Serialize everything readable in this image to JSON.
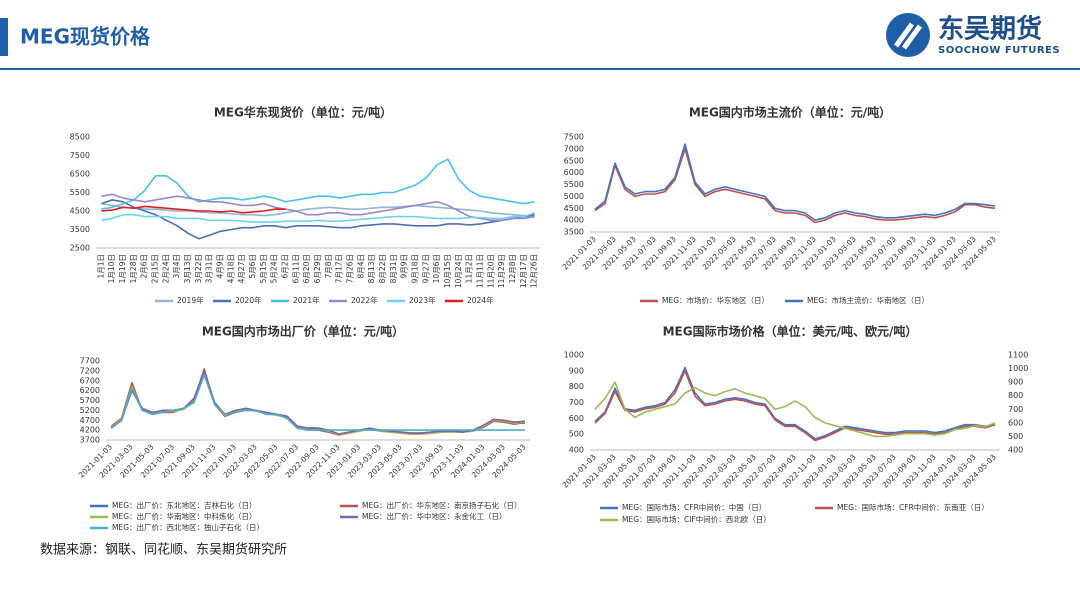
{
  "header": {
    "title": "MEG现货价格",
    "logo_cn": "东吴期货",
    "logo_en": "SOOCHOW FUTURES"
  },
  "source": "数据来源：钢联、同花顺、东吴期货研究所",
  "chart_data": [
    {
      "type": "line",
      "title": "MEG华东现货价（单位：元/吨）",
      "categories": [
        "1月1日",
        "1月10日",
        "1月19日",
        "1月28日",
        "2月6日",
        "2月15日",
        "2月24日",
        "3月4日",
        "3月13日",
        "3月22日",
        "3月31日",
        "4月9日",
        "4月18日",
        "4月27日",
        "5月6日",
        "5月15日",
        "5月24日",
        "6月2日",
        "6月11日",
        "6月20日",
        "6月29日",
        "7月8日",
        "7月17日",
        "7月26日",
        "8月4日",
        "8月13日",
        "8月22日",
        "8月31日",
        "9月9日",
        "9月18日",
        "9月27日",
        "10月6日",
        "10月15日",
        "10月24日",
        "11月2日",
        "11月11日",
        "11月20日",
        "11月29日",
        "12月8日",
        "12月17日",
        "12月26日"
      ],
      "ylim": [
        2500,
        8500
      ],
      "yticks": [
        2500,
        3500,
        4500,
        5500,
        6500,
        7500,
        8500
      ],
      "grid": false,
      "series": [
        {
          "name": "2019年",
          "color": "#93b3d6",
          "values": [
            4900,
            4800,
            4700,
            4650,
            4600,
            4600,
            4550,
            4500,
            4500,
            4450,
            4400,
            4400,
            4350,
            4300,
            4300,
            4250,
            4300,
            4400,
            4500,
            4600,
            4650,
            4700,
            4650,
            4600,
            4600,
            4650,
            4700,
            4700,
            4750,
            4800,
            4750,
            4700,
            4650,
            4600,
            4550,
            4500,
            4400,
            4350,
            4300,
            4250,
            4200
          ]
        },
        {
          "name": "2020年",
          "color": "#4e6fb0",
          "values": [
            4900,
            5100,
            5000,
            4700,
            4500,
            4300,
            4000,
            3700,
            3300,
            3000,
            3200,
            3400,
            3500,
            3600,
            3600,
            3700,
            3700,
            3600,
            3700,
            3700,
            3700,
            3650,
            3600,
            3600,
            3700,
            3750,
            3800,
            3800,
            3750,
            3700,
            3700,
            3700,
            3800,
            3800,
            3750,
            3800,
            3900,
            4000,
            4100,
            4200,
            4300
          ]
        },
        {
          "name": "2021年",
          "color": "#45c3e8",
          "values": [
            4600,
            4700,
            4900,
            5100,
            5600,
            6400,
            6400,
            6000,
            5300,
            5000,
            5100,
            5200,
            5200,
            5100,
            5200,
            5300,
            5200,
            5000,
            5100,
            5200,
            5300,
            5300,
            5200,
            5300,
            5400,
            5400,
            5500,
            5500,
            5700,
            5900,
            6300,
            7000,
            7300,
            6200,
            5600,
            5300,
            5200,
            5100,
            5000,
            4900,
            5000
          ]
        },
        {
          "name": "2022年",
          "color": "#9b86c9",
          "values": [
            5300,
            5400,
            5200,
            5100,
            5000,
            5100,
            5200,
            5300,
            5200,
            5100,
            5000,
            5000,
            4900,
            4800,
            4800,
            4900,
            4700,
            4600,
            4500,
            4300,
            4300,
            4400,
            4400,
            4300,
            4300,
            4400,
            4500,
            4600,
            4700,
            4800,
            4900,
            5000,
            4800,
            4500,
            4200,
            4100,
            4000,
            4000,
            4100,
            4100,
            4200
          ]
        },
        {
          "name": "2023年",
          "color": "#6cd2ee",
          "values": [
            4000,
            4100,
            4300,
            4300,
            4200,
            4200,
            4200,
            4100,
            4100,
            4100,
            4000,
            4000,
            4000,
            3950,
            3900,
            3900,
            3900,
            3950,
            3950,
            3950,
            4000,
            3950,
            3950,
            4000,
            4050,
            4100,
            4150,
            4200,
            4200,
            4200,
            4150,
            4100,
            4100,
            4100,
            4150,
            4150,
            4100,
            4100,
            4200,
            4200,
            4400
          ]
        },
        {
          "name": "2024年",
          "color": "#e02020",
          "values": [
            4500,
            4550,
            4700,
            4650,
            4750,
            4700,
            4650,
            4600,
            4550,
            4500,
            4500,
            4450,
            4500,
            4400,
            4450,
            4500,
            4600,
            4600,
            null,
            null,
            null,
            null,
            null,
            null,
            null,
            null,
            null,
            null,
            null,
            null,
            null,
            null,
            null,
            null,
            null,
            null,
            null,
            null,
            null,
            null,
            null
          ]
        }
      ]
    },
    {
      "type": "line",
      "title": "MEG国内市场主流价（单位：元/吨）",
      "categories": [
        "2021-01-03",
        null,
        "2021-03-03",
        null,
        "2021-05-03",
        null,
        "2021-07-03",
        null,
        "2021-09-03",
        null,
        "2021-11-03",
        null,
        "2022-01-03",
        null,
        "2022-03-03",
        null,
        "2022-05-03",
        null,
        "2022-07-03",
        null,
        "2022-09-03",
        null,
        "2022-11-03",
        null,
        "2023-01-03",
        null,
        "2023-03-03",
        null,
        "2023-05-03",
        null,
        "2023-07-03",
        null,
        "2023-09-03",
        null,
        "2023-11-03",
        null,
        "2024-01-03",
        null,
        "2024-03-03",
        null,
        "2024-05-03"
      ],
      "ylim": [
        3500,
        7500
      ],
      "yticks": [
        3500,
        4000,
        4500,
        5000,
        5500,
        6000,
        6500,
        7000,
        7500
      ],
      "grid": false,
      "series": [
        {
          "name": "MEG：市场价：华东地区（日）",
          "color": "#c0504d",
          "values": [
            4400,
            4700,
            6300,
            5300,
            5000,
            5100,
            5100,
            5200,
            5700,
            7000,
            5500,
            5000,
            5200,
            5300,
            5200,
            5100,
            5000,
            4900,
            4400,
            4300,
            4300,
            4200,
            3900,
            4000,
            4200,
            4300,
            4200,
            4150,
            4050,
            4000,
            4000,
            4050,
            4100,
            4150,
            4100,
            4200,
            4350,
            4650,
            4650,
            4550,
            4500
          ]
        },
        {
          "name": "MEG：市场主流价：华南地区（日）",
          "color": "#4472c4",
          "values": [
            4450,
            4800,
            6400,
            5400,
            5100,
            5200,
            5200,
            5300,
            5800,
            7200,
            5600,
            5100,
            5300,
            5400,
            5300,
            5200,
            5100,
            5000,
            4500,
            4400,
            4400,
            4300,
            4000,
            4100,
            4300,
            4400,
            4300,
            4250,
            4150,
            4100,
            4100,
            4150,
            4200,
            4250,
            4200,
            4300,
            4450,
            4700,
            4700,
            4650,
            4600
          ]
        }
      ]
    },
    {
      "type": "line",
      "title": "MEG国内市场出厂价（单位：元/吨）",
      "categories": [
        "2021-01-03",
        null,
        "2021-03-03",
        null,
        "2021-05-03",
        null,
        "2021-07-03",
        null,
        "2021-09-03",
        null,
        "2021-11-03",
        null,
        "2022-01-03",
        null,
        "2022-03-03",
        null,
        "2022-05-03",
        null,
        "2022-07-03",
        null,
        "2022-09-03",
        null,
        "2022-11-03",
        null,
        "2023-01-03",
        null,
        "2023-03-03",
        null,
        "2023-05-03",
        null,
        "2023-07-03",
        null,
        "2023-09-03",
        null,
        "2023-11-03",
        null,
        "2024-01-03",
        null,
        "2024-03-03",
        null,
        "2024-05-03"
      ],
      "ylim": [
        3700,
        7700
      ],
      "yticks": [
        3700,
        4200,
        4700,
        5200,
        5700,
        6200,
        6700,
        7200,
        7700
      ],
      "grid": false,
      "series": [
        {
          "name": "MEG：出厂价：东北地区：吉林石化（日）",
          "color": "#4472c4",
          "values": [
            4300,
            4700,
            6200,
            5300,
            5000,
            5200,
            5200,
            5300,
            5600,
            7000,
            5600,
            5000,
            5100,
            5300,
            5200,
            5100,
            5000,
            4900,
            4400,
            4300,
            4300,
            4200,
            4000,
            4100,
            4200,
            4300,
            4200,
            4100,
            4100,
            4050,
            4050,
            4100,
            4150,
            4150,
            4100,
            4200,
            4400,
            4700,
            4650,
            4550,
            4550
          ]
        },
        {
          "name": "MEG：出厂价：华东地区：南京扬子石化（日）",
          "color": "#c0504d",
          "values": [
            4400,
            4800,
            6600,
            5200,
            5000,
            5100,
            5100,
            5300,
            5700,
            7300,
            5500,
            4900,
            5100,
            5200,
            5200,
            5000,
            5000,
            4800,
            4300,
            4200,
            4200,
            4100,
            3950,
            4050,
            4150,
            4250,
            4150,
            4100,
            4050,
            4000,
            4000,
            4050,
            4100,
            4150,
            4100,
            4150,
            4350,
            4650,
            4600,
            4500,
            4600
          ]
        },
        {
          "name": "MEG：出厂价：华南地区：中科炼化（日）",
          "color": "#9bbb59",
          "values": [
            4350,
            4750,
            6400,
            5250,
            5050,
            5150,
            5150,
            5250,
            5650,
            7100,
            5550,
            4950,
            5150,
            5250,
            5150,
            5050,
            4950,
            4850,
            4350,
            4250,
            4250,
            4150,
            3950,
            4050,
            4150,
            4250,
            4150,
            4100,
            4050,
            4000,
            4000,
            4050,
            4100,
            4100,
            4100,
            4150,
            4400,
            4700,
            4650,
            4550,
            4600
          ]
        },
        {
          "name": "MEG：出厂价：华中地区：永金化工（日）",
          "color": "#8064a2",
          "values": [
            4300,
            4700,
            6300,
            5300,
            5100,
            5200,
            5200,
            5300,
            5800,
            7200,
            5600,
            5000,
            5200,
            5300,
            5200,
            5100,
            5000,
            4900,
            4400,
            4300,
            4300,
            4200,
            4000,
            4100,
            4200,
            4300,
            4200,
            4150,
            4100,
            4050,
            4050,
            4100,
            4150,
            4150,
            4100,
            4200,
            4450,
            4750,
            4700,
            4600,
            4650
          ]
        },
        {
          "name": "MEG：出厂价：西北地区：独山子石化（日）",
          "color": "#4bacc6",
          "values": [
            4300,
            4700,
            6300,
            5200,
            5000,
            5100,
            5200,
            5300,
            5600,
            7000,
            5500,
            5000,
            5100,
            5200,
            5200,
            5000,
            5000,
            4800,
            4300,
            4200,
            4200,
            4200,
            4200,
            4200,
            4200,
            4200,
            4200,
            4200,
            4200,
            4200,
            4200,
            4200,
            4200,
            4200,
            4200,
            4200,
            4200,
            4200,
            4200,
            4200,
            4200
          ]
        }
      ]
    },
    {
      "type": "line",
      "title": "MEG国际市场价格（单位：美元/吨、欧元/吨）",
      "categories": [
        "2021-01-03",
        null,
        "2021-03-03",
        null,
        "2021-05-03",
        null,
        "2021-07-03",
        null,
        "2021-09-03",
        null,
        "2021-11-03",
        null,
        "2022-01-03",
        null,
        "2022-03-03",
        null,
        "2022-05-03",
        null,
        "2022-07-03",
        null,
        "2022-09-03",
        null,
        "2022-11-03",
        null,
        "2023-01-03",
        null,
        "2023-03-03",
        null,
        "2023-05-03",
        null,
        "2023-07-03",
        null,
        "2023-09-03",
        null,
        "2023-11-03",
        null,
        "2024-01-03",
        null,
        "2024-03-03",
        null,
        "2024-05-03"
      ],
      "ylim": [
        400,
        1000
      ],
      "yticks": [
        400,
        500,
        600,
        700,
        800,
        900,
        1000
      ],
      "y2lim": [
        400,
        1100
      ],
      "y2ticks": [
        400,
        500,
        600,
        700,
        800,
        900,
        1000,
        1100
      ],
      "grid": false,
      "series": [
        {
          "name": "MEG：国际市场：CFR中间价：中国（日）",
          "color": "#4472c4",
          "values": [
            580,
            640,
            790,
            660,
            650,
            670,
            680,
            700,
            780,
            920,
            760,
            690,
            700,
            720,
            730,
            720,
            700,
            690,
            600,
            560,
            560,
            520,
            470,
            490,
            520,
            550,
            540,
            530,
            520,
            510,
            510,
            520,
            520,
            520,
            510,
            520,
            540,
            560,
            560,
            550,
            560
          ]
        },
        {
          "name": "MEG：国际市场：CFR中间价：东南亚（日）",
          "color": "#c0504d",
          "values": [
            570,
            630,
            770,
            650,
            640,
            660,
            670,
            690,
            760,
            900,
            740,
            680,
            690,
            710,
            720,
            710,
            690,
            680,
            590,
            550,
            550,
            510,
            460,
            480,
            510,
            540,
            530,
            520,
            510,
            500,
            500,
            510,
            510,
            510,
            500,
            510,
            530,
            550,
            550,
            540,
            560
          ]
        },
        {
          "name": "MEG：国际市场：CIF中间价：西北欧（日）",
          "color": "#9bbb59",
          "axis": "y2",
          "values": [
            700,
            780,
            900,
            700,
            640,
            680,
            700,
            720,
            740,
            820,
            860,
            820,
            800,
            830,
            850,
            820,
            800,
            780,
            700,
            720,
            760,
            720,
            640,
            600,
            580,
            560,
            540,
            520,
            500,
            500,
            510,
            520,
            520,
            520,
            510,
            520,
            550,
            560,
            580,
            570,
            600
          ]
        }
      ]
    }
  ]
}
